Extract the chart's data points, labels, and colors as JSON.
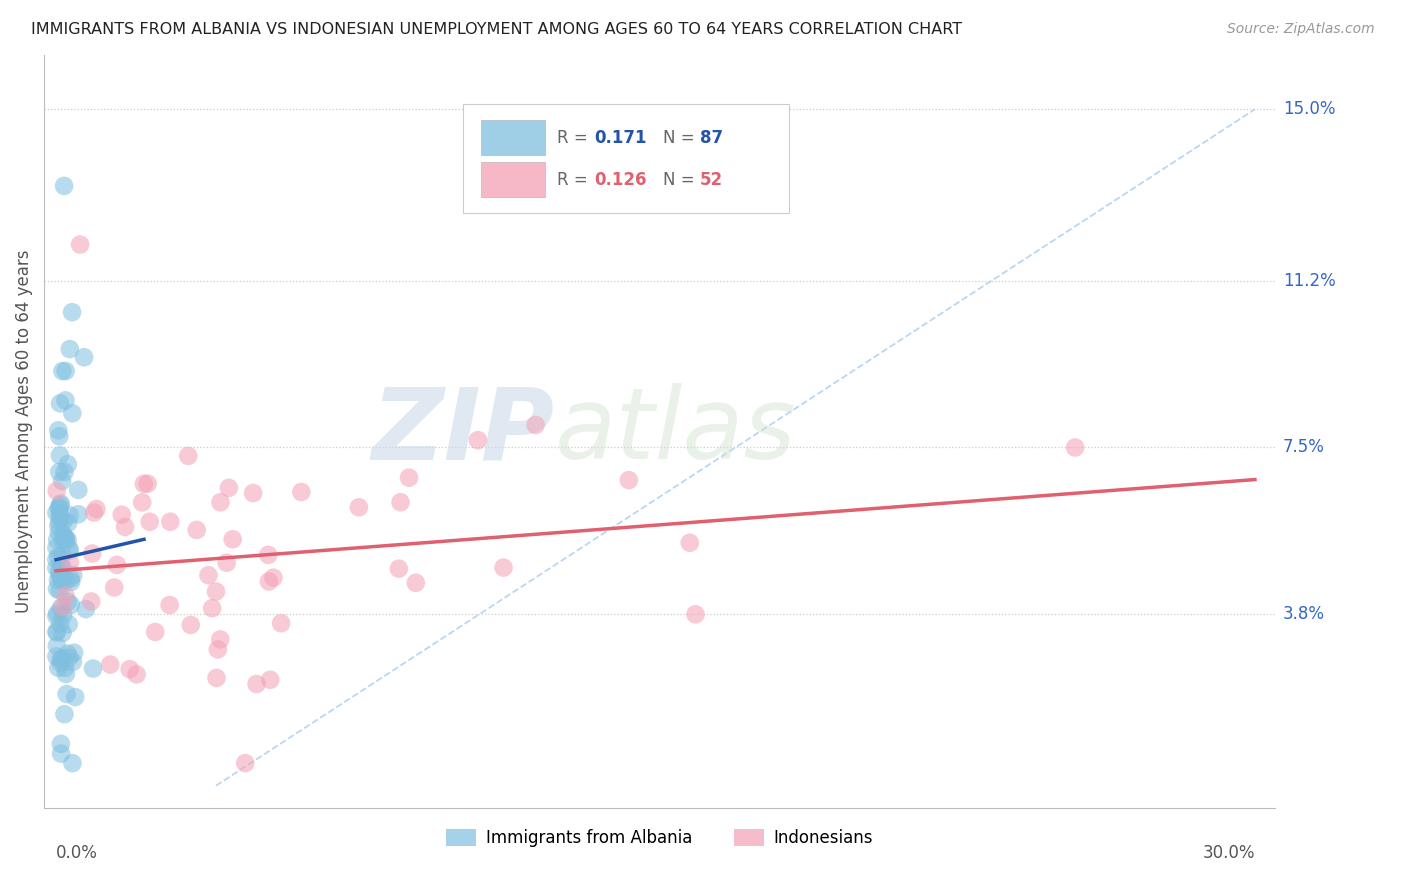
{
  "title": "IMMIGRANTS FROM ALBANIA VS INDONESIAN UNEMPLOYMENT AMONG AGES 60 TO 64 YEARS CORRELATION CHART",
  "source": "Source: ZipAtlas.com",
  "ylabel": "Unemployment Among Ages 60 to 64 years",
  "color_albania": "#7fbfdf",
  "color_indonesia": "#f4a0b5",
  "trendline_albania": "#2255aa",
  "trendline_indonesia": "#e06070",
  "trendline_ref_color": "#aaccee",
  "ytick_vals": [
    0.038,
    0.075,
    0.112,
    0.15
  ],
  "ytick_labels": [
    "3.8%",
    "7.5%",
    "11.2%",
    "15.0%"
  ],
  "xlim": [
    0.0,
    0.3
  ],
  "ylim": [
    0.0,
    0.158
  ],
  "watermark_zip": "ZIP",
  "watermark_atlas": "atlas",
  "legend_r1": "R = ",
  "legend_v1": "0.171",
  "legend_n1_label": "N = ",
  "legend_n1_val": "87",
  "legend_r2": "R = ",
  "legend_v2": "0.126",
  "legend_n2_label": "N = ",
  "legend_n2_val": "52",
  "legend_color1": "#2255aa",
  "legend_color2": "#e06070"
}
